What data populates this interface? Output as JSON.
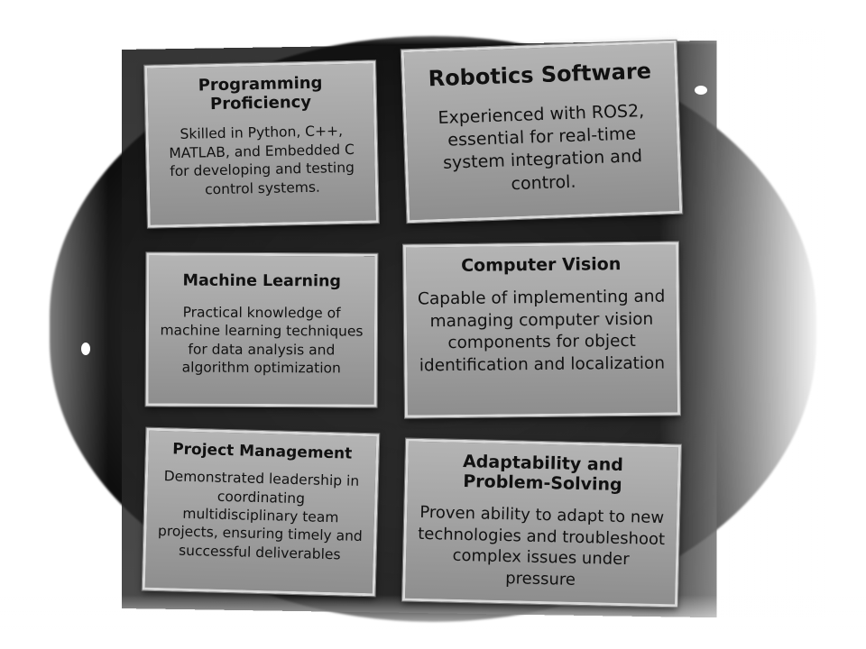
{
  "cards": {
    "programming": {
      "title": "Programming Proficiency",
      "body": "Skilled in Python, C++, MATLAB, and Embedded C for developing and testing control systems."
    },
    "robotics": {
      "title": "Robotics Software",
      "body": "Experienced with ROS2, essential for real-time system integration and control."
    },
    "machine_learning": {
      "title": "Machine Learning",
      "body": "Practical knowledge of machine learning techniques for data analysis and algorithm optimization"
    },
    "computer_vision": {
      "title": "Computer Vision",
      "body": "Capable of implementing and managing computer vision components for object identification and localization"
    },
    "project_management": {
      "title": "Project Management",
      "body": "Demonstrated leadership in coordinating multidisciplinary team projects, ensuring timely and successful deliverables"
    },
    "adaptability": {
      "title": "Adaptability and Problem-Solving",
      "body": "Proven ability to adapt to new technologies and troubleshoot complex issues under pressure"
    }
  },
  "colors": {
    "background": "#ffffff",
    "card_fill": "#a2a2a2",
    "card_border": "#d8d8d8",
    "text": "#111111",
    "vignette": "#0e0e0e"
  }
}
